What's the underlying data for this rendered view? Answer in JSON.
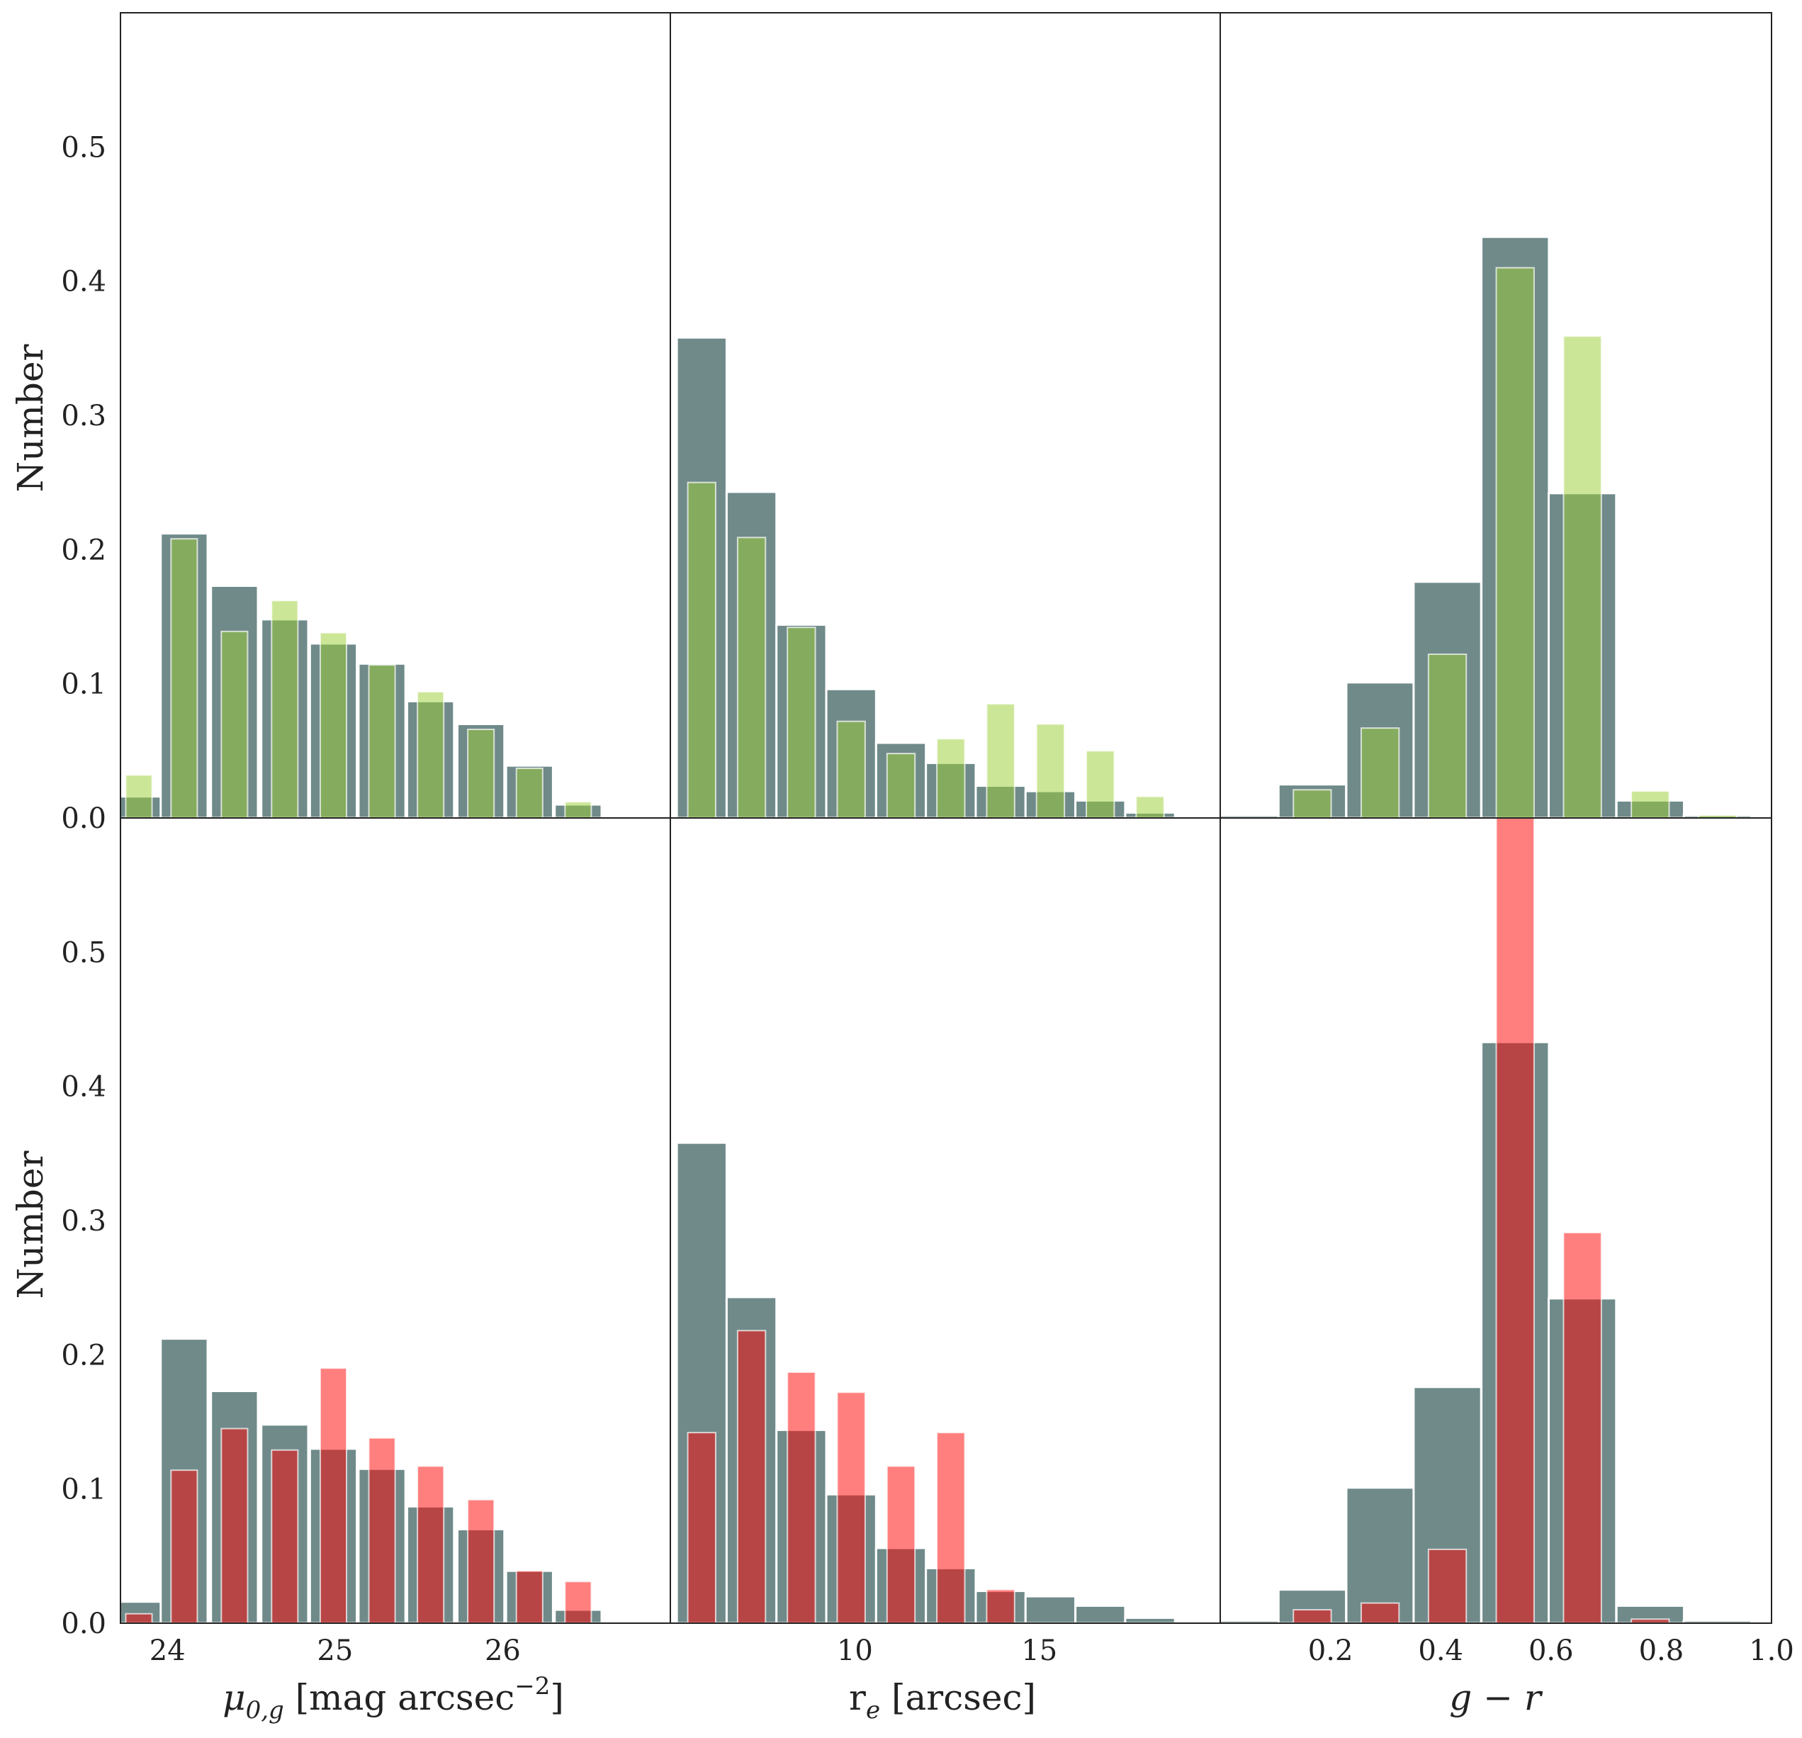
{
  "chart_data": {
    "type": "bar",
    "layout": "2x3 grid of histogram panels, shared y-axis per row, shared x-axis per column",
    "ylim": [
      0,
      0.6
    ],
    "yticks": [
      0.0,
      0.1,
      0.2,
      0.3,
      0.4,
      0.5
    ],
    "ytick_labels": [
      "0.0",
      "0.1",
      "0.2",
      "0.3",
      "0.4",
      "0.5"
    ],
    "ylabel": "Number",
    "colors": {
      "background": "#517070",
      "green": "#9ACD32",
      "red": "#FF0000",
      "frame": "#222222"
    },
    "columns": [
      {
        "xlabel_main": "μ",
        "xlabel_sub": "0,g",
        "xlabel_rest": " [mag arcsec",
        "xlabel_sup": "−2",
        "xlabel_end": "]",
        "xlim": [
          23.72,
          27.0
        ],
        "xticks": [
          24,
          25,
          26
        ],
        "xtick_labels": [
          "24",
          "25",
          "26"
        ],
        "bin_centers": [
          23.83,
          24.1,
          24.4,
          24.7,
          24.99,
          25.28,
          25.57,
          25.87,
          26.16,
          26.45
        ],
        "bin_width": 0.28,
        "background": [
          0.016,
          0.212,
          0.173,
          0.148,
          0.13,
          0.115,
          0.087,
          0.07,
          0.039,
          0.01
        ],
        "green": [
          0.032,
          0.208,
          0.139,
          0.162,
          0.138,
          0.114,
          0.094,
          0.066,
          0.037,
          0.012
        ],
        "red": [
          0.007,
          0.114,
          0.145,
          0.129,
          0.19,
          0.138,
          0.117,
          0.092,
          0.039,
          0.031
        ]
      },
      {
        "xlabel_main": "r",
        "xlabel_sub": "e",
        "xlabel_rest": " [arcsec]",
        "xlabel_sup": "",
        "xlabel_end": "",
        "xlim": [
          5.0,
          19.9
        ],
        "xticks": [
          10,
          15
        ],
        "xtick_labels": [
          "10",
          "15"
        ],
        "bin_centers": [
          5.85,
          7.2,
          8.55,
          9.9,
          11.25,
          12.6,
          13.95,
          15.3,
          16.65,
          18.0
        ],
        "bin_width": 1.35,
        "background": [
          0.358,
          0.243,
          0.144,
          0.096,
          0.056,
          0.041,
          0.024,
          0.02,
          0.013,
          0.004
        ],
        "green": [
          0.25,
          0.209,
          0.142,
          0.072,
          0.048,
          0.059,
          0.085,
          0.07,
          0.05,
          0.016
        ],
        "red": [
          0.142,
          0.218,
          0.187,
          0.172,
          0.117,
          0.142,
          0.025,
          0.0,
          0.0,
          0.0
        ]
      },
      {
        "xlabel_main": "g",
        "xlabel_sub": "",
        "xlabel_rest": " − ",
        "xlabel_sup": "",
        "xlabel_end": "r",
        "xlim": [
          0.0,
          1.0
        ],
        "xticks": [
          0.2,
          0.4,
          0.6,
          0.8,
          1.0
        ],
        "xtick_labels": [
          "0.2",
          "0.4",
          "0.6",
          "0.8",
          "1.0"
        ],
        "bin_centers": [
          0.05,
          0.167,
          0.29,
          0.412,
          0.535,
          0.657,
          0.78,
          0.902
        ],
        "bin_width": 0.1225,
        "background": [
          0.002,
          0.025,
          0.101,
          0.176,
          0.433,
          0.242,
          0.013,
          0.002
        ],
        "green": [
          0.0,
          0.021,
          0.067,
          0.122,
          0.41,
          0.359,
          0.02,
          0.002
        ],
        "red": [
          0.0,
          0.01,
          0.015,
          0.055,
          0.6,
          0.291,
          0.003,
          0.0
        ]
      }
    ],
    "rows": [
      {
        "overlay": "green"
      },
      {
        "overlay": "red"
      }
    ]
  }
}
